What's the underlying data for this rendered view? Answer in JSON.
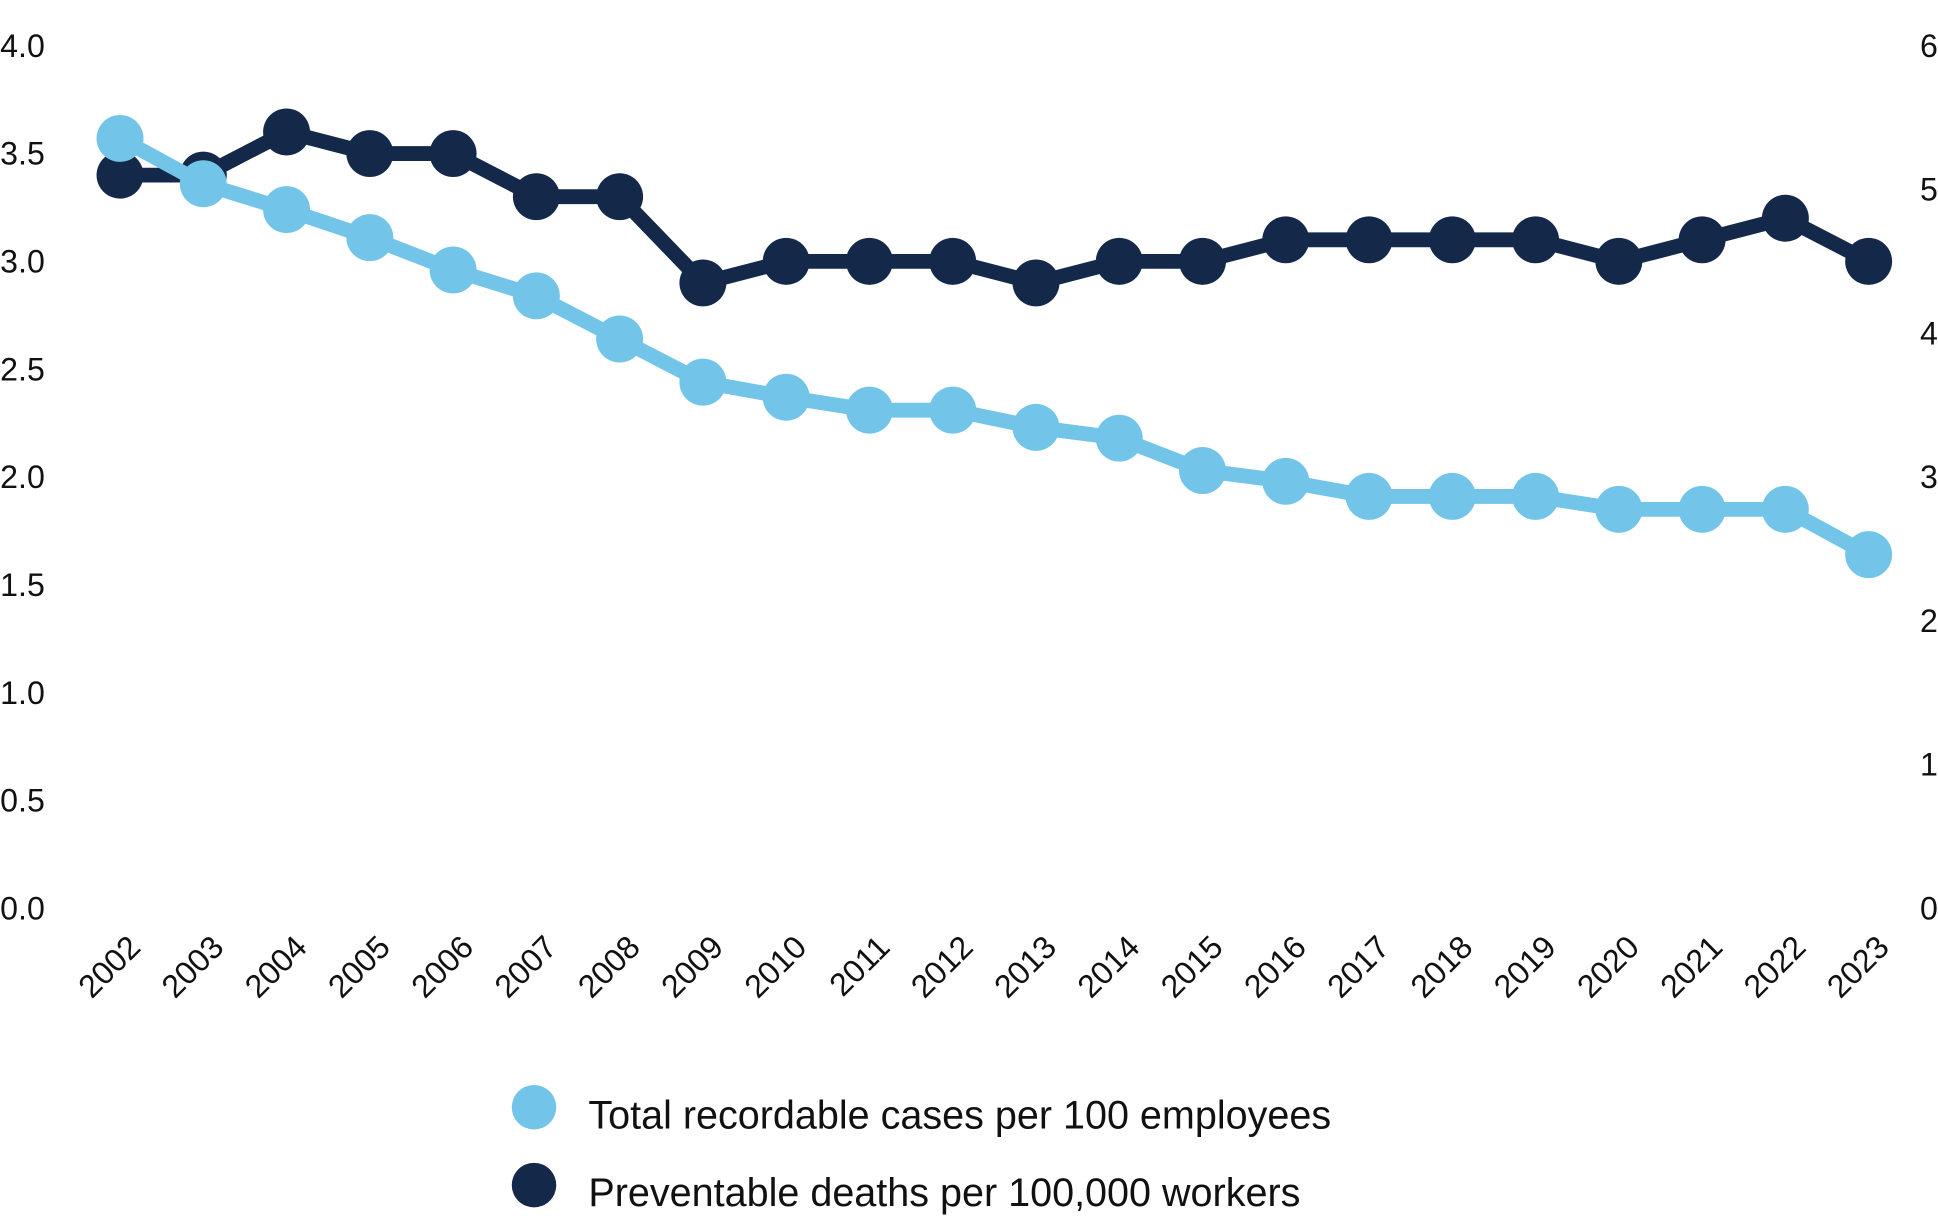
{
  "chart_data": {
    "type": "line",
    "title": "",
    "x": [
      "2002",
      "2003",
      "2004",
      "2005",
      "2006",
      "2007",
      "2008",
      "2009",
      "2010",
      "2011",
      "2012",
      "2013",
      "2014",
      "2015",
      "2016",
      "2017",
      "2018",
      "2019",
      "2020",
      "2021",
      "2022",
      "2023"
    ],
    "left_axis": {
      "ylim": [
        0,
        4
      ],
      "ticks": [
        "0.0",
        "0.5",
        "1.0",
        "1.5",
        "2.0",
        "2.5",
        "3.0",
        "3.5",
        "4.0"
      ]
    },
    "right_axis": {
      "ylim": [
        0,
        6
      ],
      "ticks": [
        "0",
        "1",
        "2",
        "3",
        "4",
        "5",
        "6"
      ]
    },
    "grid": false,
    "legend_placement": "bottom-center",
    "series": [
      {
        "name": "Total recordable cases per 100 employees",
        "axis": "left",
        "color": "#72C5E8",
        "values": [
          3.57,
          3.36,
          3.24,
          3.11,
          2.96,
          2.84,
          2.64,
          2.44,
          2.37,
          2.31,
          2.31,
          2.23,
          2.18,
          2.03,
          1.98,
          1.91,
          1.91,
          1.91,
          1.85,
          1.85,
          1.85,
          1.64
        ]
      },
      {
        "name": "Preventable deaths per 100,000 workers",
        "axis": "right",
        "color": "#14294A",
        "values": [
          5.1,
          5.1,
          5.4,
          5.25,
          5.25,
          4.95,
          4.95,
          4.35,
          4.5,
          4.5,
          4.5,
          4.35,
          4.5,
          4.5,
          4.65,
          4.65,
          4.65,
          4.65,
          4.5,
          4.65,
          4.8,
          4.5
        ]
      }
    ]
  }
}
